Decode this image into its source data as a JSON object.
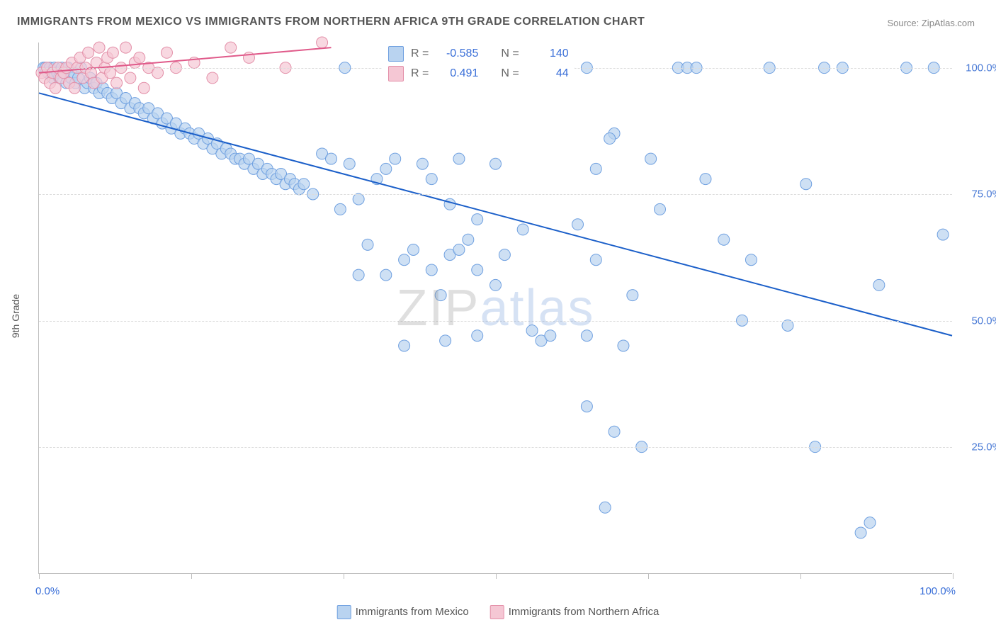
{
  "title": "IMMIGRANTS FROM MEXICO VS IMMIGRANTS FROM NORTHERN AFRICA 9TH GRADE CORRELATION CHART",
  "source_label": "Source: ",
  "source_name": "ZipAtlas.com",
  "ylabel": "9th Grade",
  "watermark": {
    "part1": "ZIP",
    "part2": "atlas"
  },
  "chart": {
    "type": "scatter",
    "xlim": [
      0,
      100
    ],
    "ylim": [
      0,
      105
    ],
    "xlim_labels": {
      "left": "0.0%",
      "right": "100.0%"
    },
    "xtick_positions": [
      0,
      16.67,
      33.33,
      50,
      66.67,
      83.33,
      100
    ],
    "yticks": [
      {
        "v": 25,
        "label": "25.0%"
      },
      {
        "v": 50,
        "label": "50.0%"
      },
      {
        "v": 75,
        "label": "75.0%"
      },
      {
        "v": 100,
        "label": "100.0%"
      }
    ],
    "grid_color": "#dcdcdc",
    "background_color": "#ffffff",
    "axis_color": "#bdbdbd",
    "series": [
      {
        "name": "Immigrants from Mexico",
        "color_fill": "#b9d3f0",
        "color_stroke": "#6fa0e0",
        "marker_radius": 8,
        "marker_opacity": 0.7,
        "trend": {
          "x1": 0,
          "y1": 95,
          "x2": 100,
          "y2": 47,
          "color": "#1b5fc9",
          "width": 2
        },
        "stats": {
          "R": "-0.585",
          "N": "140"
        },
        "points": [
          [
            0.5,
            100
          ],
          [
            0.7,
            100
          ],
          [
            1,
            99
          ],
          [
            1.2,
            100
          ],
          [
            1.5,
            98
          ],
          [
            1.7,
            100
          ],
          [
            2,
            99
          ],
          [
            2.2,
            98
          ],
          [
            2.5,
            100
          ],
          [
            2.8,
            99
          ],
          [
            3,
            97
          ],
          [
            3.2,
            100
          ],
          [
            3.5,
            98
          ],
          [
            3.8,
            99
          ],
          [
            4,
            97
          ],
          [
            4.3,
            98
          ],
          [
            4.6,
            100
          ],
          [
            5,
            96
          ],
          [
            5.3,
            97
          ],
          [
            5.6,
            98
          ],
          [
            6,
            96
          ],
          [
            6.3,
            97
          ],
          [
            6.6,
            95
          ],
          [
            7,
            96
          ],
          [
            7.5,
            95
          ],
          [
            8,
            94
          ],
          [
            8.5,
            95
          ],
          [
            9,
            93
          ],
          [
            9.5,
            94
          ],
          [
            10,
            92
          ],
          [
            10.5,
            93
          ],
          [
            11,
            92
          ],
          [
            11.5,
            91
          ],
          [
            12,
            92
          ],
          [
            12.5,
            90
          ],
          [
            13,
            91
          ],
          [
            13.5,
            89
          ],
          [
            14,
            90
          ],
          [
            14.5,
            88
          ],
          [
            15,
            89
          ],
          [
            15.5,
            87
          ],
          [
            16,
            88
          ],
          [
            16.5,
            87
          ],
          [
            17,
            86
          ],
          [
            17.5,
            87
          ],
          [
            18,
            85
          ],
          [
            18.5,
            86
          ],
          [
            19,
            84
          ],
          [
            19.5,
            85
          ],
          [
            20,
            83
          ],
          [
            20.5,
            84
          ],
          [
            21,
            83
          ],
          [
            21.5,
            82
          ],
          [
            22,
            82
          ],
          [
            22.5,
            81
          ],
          [
            23,
            82
          ],
          [
            23.5,
            80
          ],
          [
            24,
            81
          ],
          [
            24.5,
            79
          ],
          [
            25,
            80
          ],
          [
            25.5,
            79
          ],
          [
            26,
            78
          ],
          [
            26.5,
            79
          ],
          [
            27,
            77
          ],
          [
            27.5,
            78
          ],
          [
            28,
            77
          ],
          [
            28.5,
            76
          ],
          [
            29,
            77
          ],
          [
            30,
            75
          ],
          [
            31,
            83
          ],
          [
            32,
            82
          ],
          [
            33,
            72
          ],
          [
            34,
            81
          ],
          [
            35,
            74
          ],
          [
            35,
            59
          ],
          [
            36,
            65
          ],
          [
            37,
            78
          ],
          [
            38,
            80
          ],
          [
            38,
            59
          ],
          [
            39,
            82
          ],
          [
            40,
            62
          ],
          [
            40,
            45
          ],
          [
            41,
            64
          ],
          [
            42,
            81
          ],
          [
            43,
            78
          ],
          [
            43,
            60
          ],
          [
            44,
            55
          ],
          [
            44.5,
            46
          ],
          [
            45,
            63
          ],
          [
            45,
            73
          ],
          [
            46,
            82
          ],
          [
            46,
            64
          ],
          [
            47,
            66
          ],
          [
            48,
            70
          ],
          [
            48,
            47
          ],
          [
            48,
            60
          ],
          [
            50,
            81
          ],
          [
            50,
            57
          ],
          [
            51,
            63
          ],
          [
            52,
            100
          ],
          [
            53,
            68
          ],
          [
            54,
            48
          ],
          [
            55,
            46
          ],
          [
            56,
            47
          ],
          [
            58,
            100
          ],
          [
            59,
            69
          ],
          [
            60,
            33
          ],
          [
            60,
            100
          ],
          [
            60,
            47
          ],
          [
            61,
            80
          ],
          [
            61,
            62
          ],
          [
            62,
            13
          ],
          [
            63,
            28
          ],
          [
            63,
            87
          ],
          [
            64,
            45
          ],
          [
            65,
            55
          ],
          [
            66,
            25
          ],
          [
            67,
            82
          ],
          [
            68,
            72
          ],
          [
            70,
            100
          ],
          [
            71,
            100
          ],
          [
            72,
            100
          ],
          [
            73,
            78
          ],
          [
            75,
            66
          ],
          [
            77,
            50
          ],
          [
            78,
            62
          ],
          [
            80,
            100
          ],
          [
            82,
            49
          ],
          [
            84,
            77
          ],
          [
            85,
            25
          ],
          [
            86,
            100
          ],
          [
            88,
            100
          ],
          [
            90,
            8
          ],
          [
            91,
            10
          ],
          [
            92,
            57
          ],
          [
            95,
            100
          ],
          [
            98,
            100
          ],
          [
            99,
            67
          ],
          [
            62.5,
            86
          ],
          [
            33.5,
            100
          ]
        ]
      },
      {
        "name": "Immigrants from Northern Africa",
        "color_fill": "#f5c7d4",
        "color_stroke": "#e38fa8",
        "marker_radius": 8,
        "marker_opacity": 0.7,
        "trend": {
          "x1": 0,
          "y1": 99,
          "x2": 32,
          "y2": 104,
          "color": "#e05a8a",
          "width": 2
        },
        "stats": {
          "R": "0.491",
          "N": "44"
        },
        "points": [
          [
            0.3,
            99
          ],
          [
            0.6,
            98
          ],
          [
            0.9,
            100
          ],
          [
            1.2,
            97
          ],
          [
            1.5,
            99
          ],
          [
            1.8,
            96
          ],
          [
            2.1,
            100
          ],
          [
            2.4,
            98
          ],
          [
            2.7,
            99
          ],
          [
            3,
            100
          ],
          [
            3.3,
            97
          ],
          [
            3.6,
            101
          ],
          [
            3.9,
            96
          ],
          [
            4.2,
            100
          ],
          [
            4.5,
            102
          ],
          [
            4.8,
            98
          ],
          [
            5.1,
            100
          ],
          [
            5.4,
            103
          ],
          [
            5.7,
            99
          ],
          [
            6,
            97
          ],
          [
            6.3,
            101
          ],
          [
            6.6,
            104
          ],
          [
            6.9,
            98
          ],
          [
            7.2,
            100
          ],
          [
            7.5,
            102
          ],
          [
            7.8,
            99
          ],
          [
            8.1,
            103
          ],
          [
            8.5,
            97
          ],
          [
            9,
            100
          ],
          [
            9.5,
            104
          ],
          [
            10,
            98
          ],
          [
            10.5,
            101
          ],
          [
            11,
            102
          ],
          [
            11.5,
            96
          ],
          [
            12,
            100
          ],
          [
            13,
            99
          ],
          [
            14,
            103
          ],
          [
            15,
            100
          ],
          [
            17,
            101
          ],
          [
            19,
            98
          ],
          [
            21,
            104
          ],
          [
            23,
            102
          ],
          [
            27,
            100
          ],
          [
            31,
            105
          ]
        ]
      }
    ]
  },
  "legend": {
    "items": [
      {
        "label": "Immigrants from Mexico",
        "fill": "#b9d3f0",
        "stroke": "#6fa0e0"
      },
      {
        "label": "Immigrants from Northern Africa",
        "fill": "#f5c7d4",
        "stroke": "#e38fa8"
      }
    ]
  },
  "stats_box": {
    "rows": [
      {
        "fill": "#b9d3f0",
        "stroke": "#6fa0e0",
        "R_label": "R =",
        "R": "-0.585",
        "N_label": "N =",
        "N": "140"
      },
      {
        "fill": "#f5c7d4",
        "stroke": "#e38fa8",
        "R_label": "R =",
        "R": "0.491",
        "N_label": "N =",
        "N": "44"
      }
    ]
  }
}
